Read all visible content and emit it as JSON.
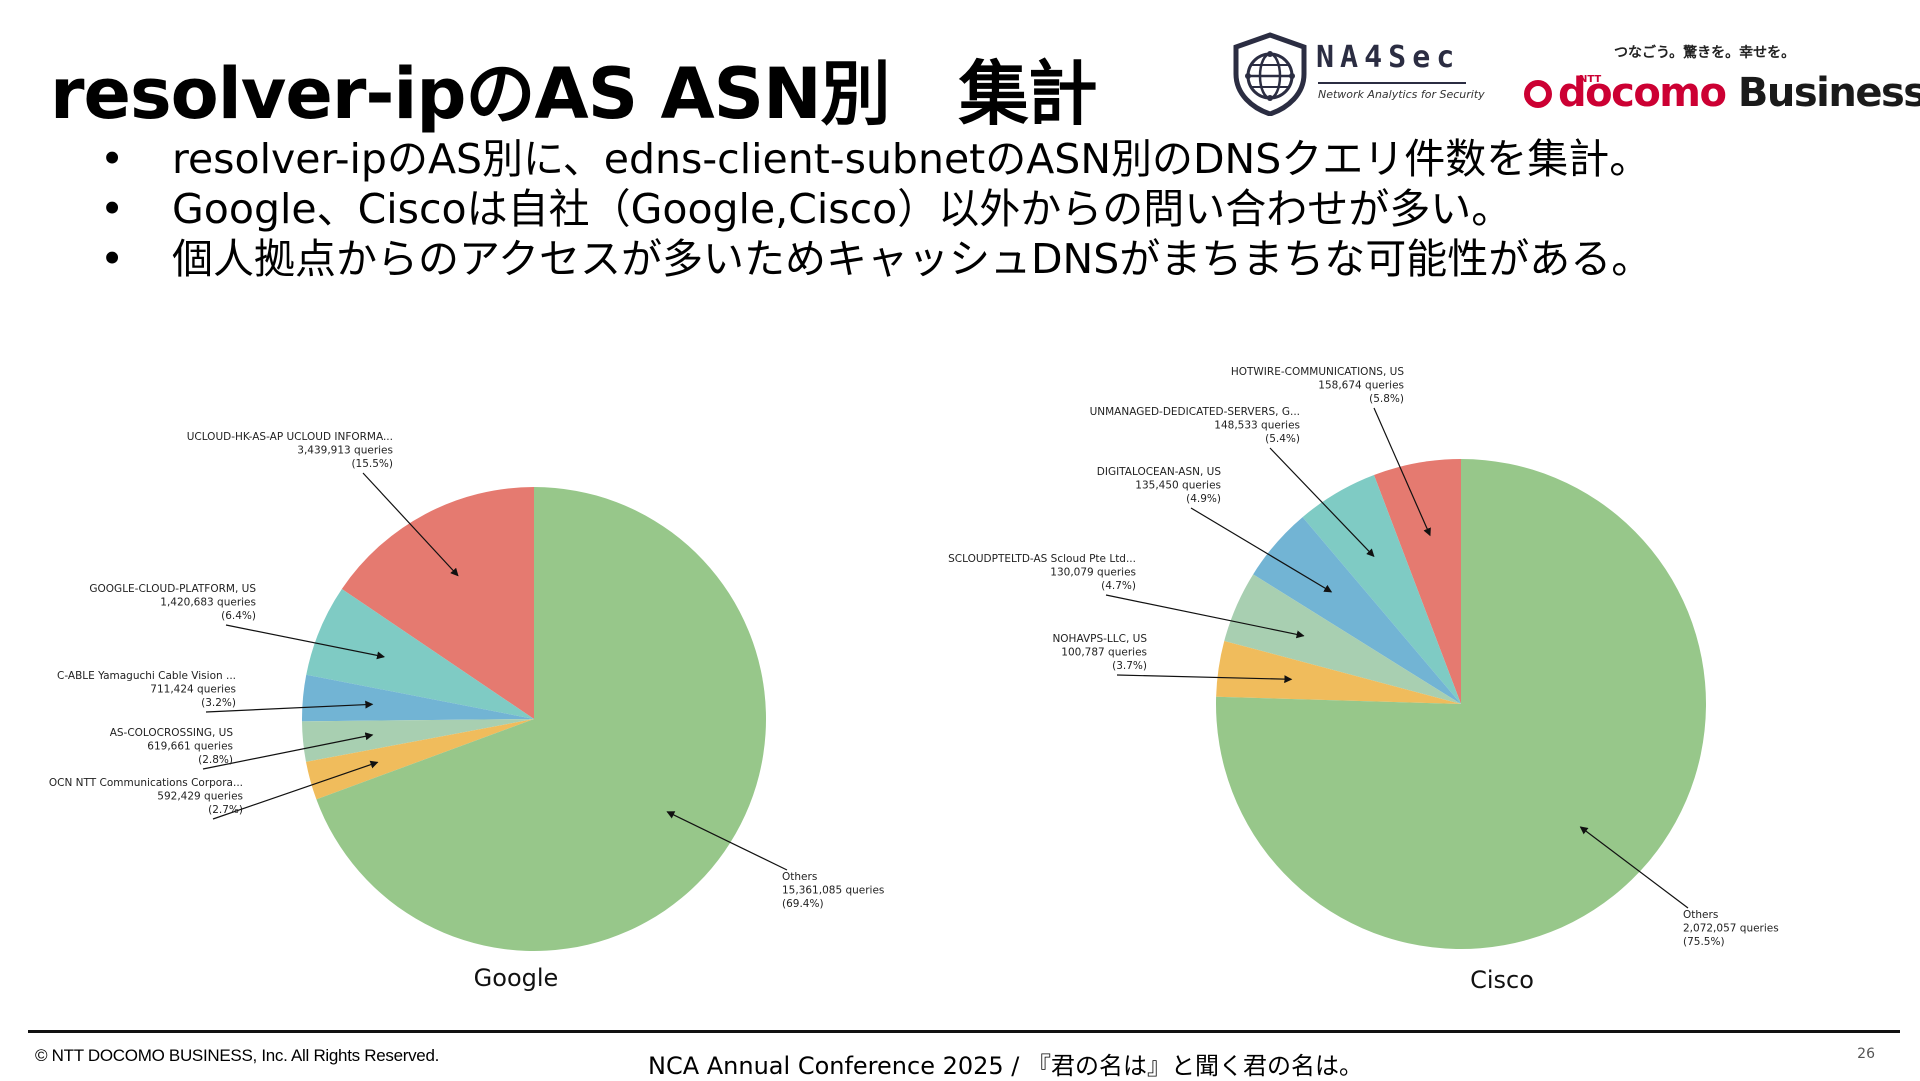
{
  "slide": {
    "title": "resolver-ipのAS ASN別　集計",
    "bullet_marker": "•",
    "bullets": [
      "resolver-ipのAS別に、edns-client-subnetのASN別のDNSクエリ件数を集計。",
      "Google、Ciscoは自社（Google,Cisco）以外からの問い合わせが多い。",
      "個人拠点からのアクセスが多いためキャッシュDNSがまちまちな可能性がある。"
    ],
    "copyright": "© NTT DOCOMO BUSINESS, Inc. All Rights Reserved.",
    "conference": "NCA Annual Conference 2025 / 『君の名は』と聞く君の名は。",
    "page_number": "26"
  },
  "logos": {
    "na4sec_name": "NA4Sec",
    "na4sec_tagline": "Network Analytics for Security",
    "docomo_slogan": "つなごう。驚きを。幸せを。",
    "docomo_ntt": "NTT",
    "docomo_word": "docomo",
    "docomo_business": "Business",
    "brand_red": "#cc0033"
  },
  "chart_data": [
    {
      "type": "pie",
      "xlabel": "Google",
      "start_angle_deg": 90,
      "direction": "counterclockwise",
      "slices": [
        {
          "name": "UCLOUD-HK-AS-AP UCLOUD INFORMA...",
          "queries": "3,439,913 queries",
          "pct": "(15.5%)",
          "value": 3439913,
          "color": "#e57a70"
        },
        {
          "name": "GOOGLE-CLOUD-PLATFORM, US",
          "queries": "1,420,683 queries",
          "pct": "(6.4%)",
          "value": 1420683,
          "color": "#7fcbc4"
        },
        {
          "name": "C-ABLE Yamaguchi Cable Vision ...",
          "queries": "711,424 queries",
          "pct": "(3.2%)",
          "value": 711424,
          "color": "#72b4d4"
        },
        {
          "name": "AS-COLOCROSSING, US",
          "queries": "619,661 queries",
          "pct": "(2.8%)",
          "value": 619661,
          "color": "#a8cfb1"
        },
        {
          "name": "OCN NTT Communications Corpora...",
          "queries": "592,429 queries",
          "pct": "(2.7%)",
          "value": 592429,
          "color": "#f0bc5c"
        },
        {
          "name": "Others",
          "queries": "15,361,085 queries",
          "pct": "(69.4%)",
          "value": 15361085,
          "color": "#97c78a"
        }
      ]
    },
    {
      "type": "pie",
      "xlabel": "Cisco",
      "start_angle_deg": 90,
      "direction": "counterclockwise",
      "slices": [
        {
          "name": "HOTWIRE-COMMUNICATIONS, US",
          "queries": "158,674 queries",
          "pct": "(5.8%)",
          "value": 158674,
          "color": "#e57a70"
        },
        {
          "name": "UNMANAGED-DEDICATED-SERVERS, G...",
          "queries": "148,533 queries",
          "pct": "(5.4%)",
          "value": 148533,
          "color": "#7fcbc4"
        },
        {
          "name": "DIGITALOCEAN-ASN, US",
          "queries": "135,450 queries",
          "pct": "(4.9%)",
          "value": 135450,
          "color": "#72b4d4"
        },
        {
          "name": "SCLOUDPTELTD-AS Scloud Pte Ltd...",
          "queries": "130,079 queries",
          "pct": "(4.7%)",
          "value": 130079,
          "color": "#a8cfb1"
        },
        {
          "name": "NOHAVPS-LLC, US",
          "queries": "100,787 queries",
          "pct": "(3.7%)",
          "value": 100787,
          "color": "#f0bc5c"
        },
        {
          "name": "Others",
          "queries": "2,072,057 queries",
          "pct": "(75.5%)",
          "value": 2072057,
          "color": "#97c78a"
        }
      ]
    }
  ]
}
